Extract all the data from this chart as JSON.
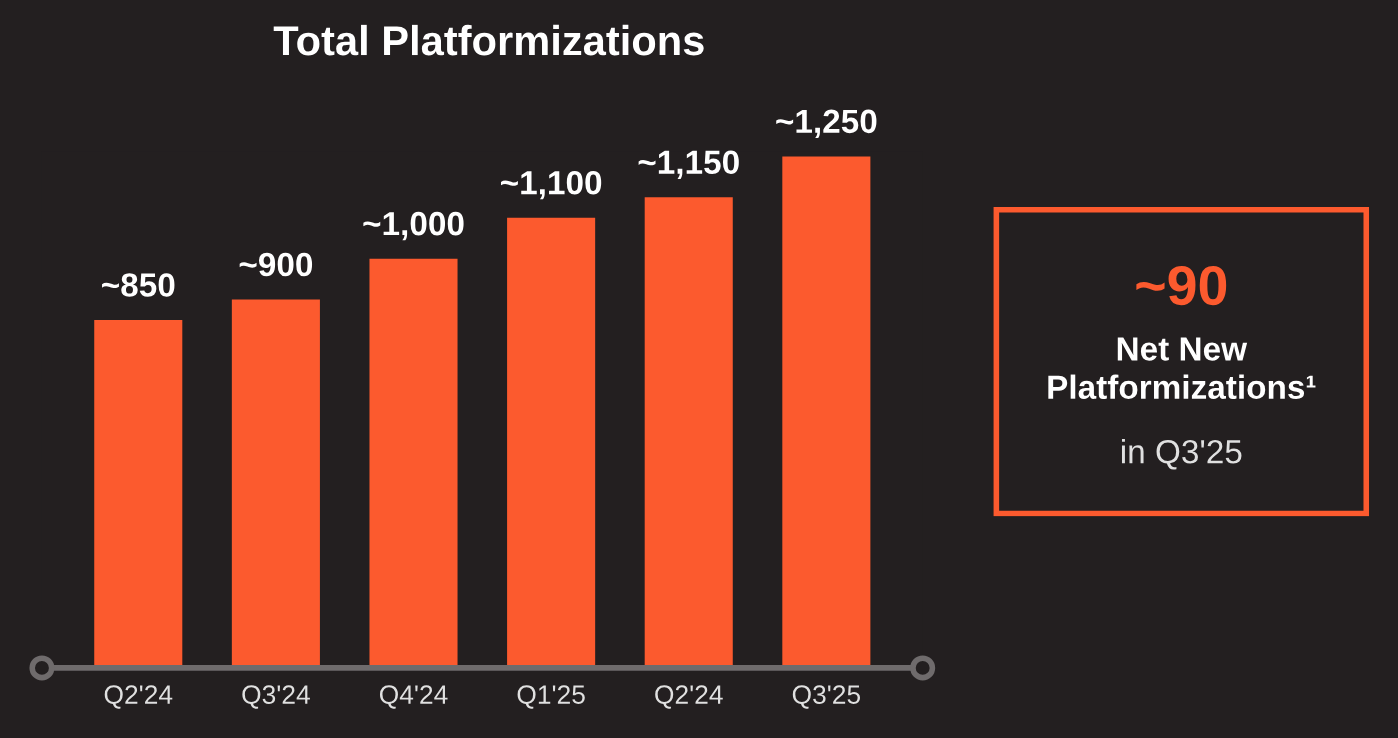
{
  "chart_data": [
    {
      "type": "bar",
      "title": "Total Platformizations",
      "categories": [
        "Q2'24",
        "Q3'24",
        "Q4'24",
        "Q1'25",
        "Q2'24",
        "Q3'25"
      ],
      "values": [
        850,
        900,
        1000,
        1100,
        1150,
        1250
      ],
      "color": "#fc5a2e",
      "value_labels": [
        "~850",
        "~900",
        "~1,000",
        "~1,100",
        "~1,150",
        "~1,250"
      ],
      "grid": false,
      "legend": false
    },
    {
      "type": "other",
      "color": "#fc5a2e",
      "annotations": [
        "~90",
        "Net New Platformizations¹",
        "in Q3'25"
      ]
    }
  ]
}
